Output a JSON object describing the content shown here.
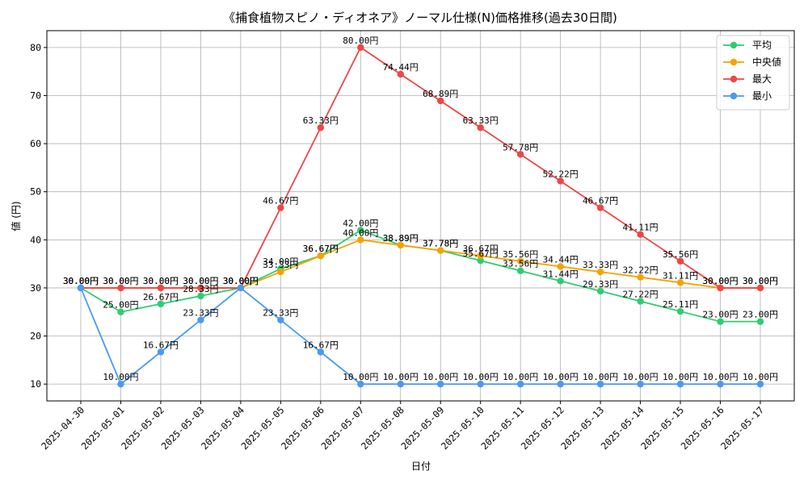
{
  "chart_data": {
    "type": "line",
    "title": "《捕食植物スピノ・ディオネア》ノーマル仕様(N)価格推移(過去30日間)",
    "xlabel": "日付",
    "ylabel": "値 (円)",
    "ylim": [
      6.5,
      83.5
    ],
    "yticks": [
      10,
      20,
      30,
      40,
      50,
      60,
      70,
      80
    ],
    "grid": true,
    "legend_position": "top-right",
    "value_suffix": "円",
    "categories": [
      "2025-04-30",
      "2025-05-01",
      "2025-05-02",
      "2025-05-03",
      "2025-05-04",
      "2025-05-05",
      "2025-05-06",
      "2025-05-07",
      "2025-05-08",
      "2025-05-09",
      "2025-05-10",
      "2025-05-11",
      "2025-05-12",
      "2025-05-13",
      "2025-05-14",
      "2025-05-15",
      "2025-05-16",
      "2025-05-17"
    ],
    "series": [
      {
        "name": "平均",
        "color": "#2ecc71",
        "values": [
          30.0,
          25.0,
          26.67,
          28.33,
          30.0,
          34.0,
          36.67,
          42.0,
          38.89,
          37.78,
          35.67,
          33.56,
          31.44,
          29.33,
          27.22,
          25.11,
          23.0,
          23.0
        ]
      },
      {
        "name": "中央値",
        "color": "#f5a300",
        "values": [
          30.0,
          30.0,
          30.0,
          30.0,
          30.0,
          33.33,
          36.67,
          40.0,
          38.89,
          37.78,
          36.67,
          35.56,
          34.44,
          33.33,
          32.22,
          31.11,
          30.0,
          30.0
        ]
      },
      {
        "name": "最大",
        "color": "#f04545",
        "values": [
          30.0,
          30.0,
          30.0,
          30.0,
          30.0,
          46.67,
          63.33,
          80.0,
          74.44,
          68.89,
          63.33,
          57.78,
          52.22,
          46.67,
          41.11,
          35.56,
          30.0,
          30.0
        ]
      },
      {
        "name": "最小",
        "color": "#4a9af0",
        "values": [
          30.0,
          10.0,
          16.67,
          23.33,
          30.0,
          23.33,
          16.67,
          10.0,
          10.0,
          10.0,
          10.0,
          10.0,
          10.0,
          10.0,
          10.0,
          10.0,
          10.0,
          10.0
        ]
      }
    ]
  }
}
